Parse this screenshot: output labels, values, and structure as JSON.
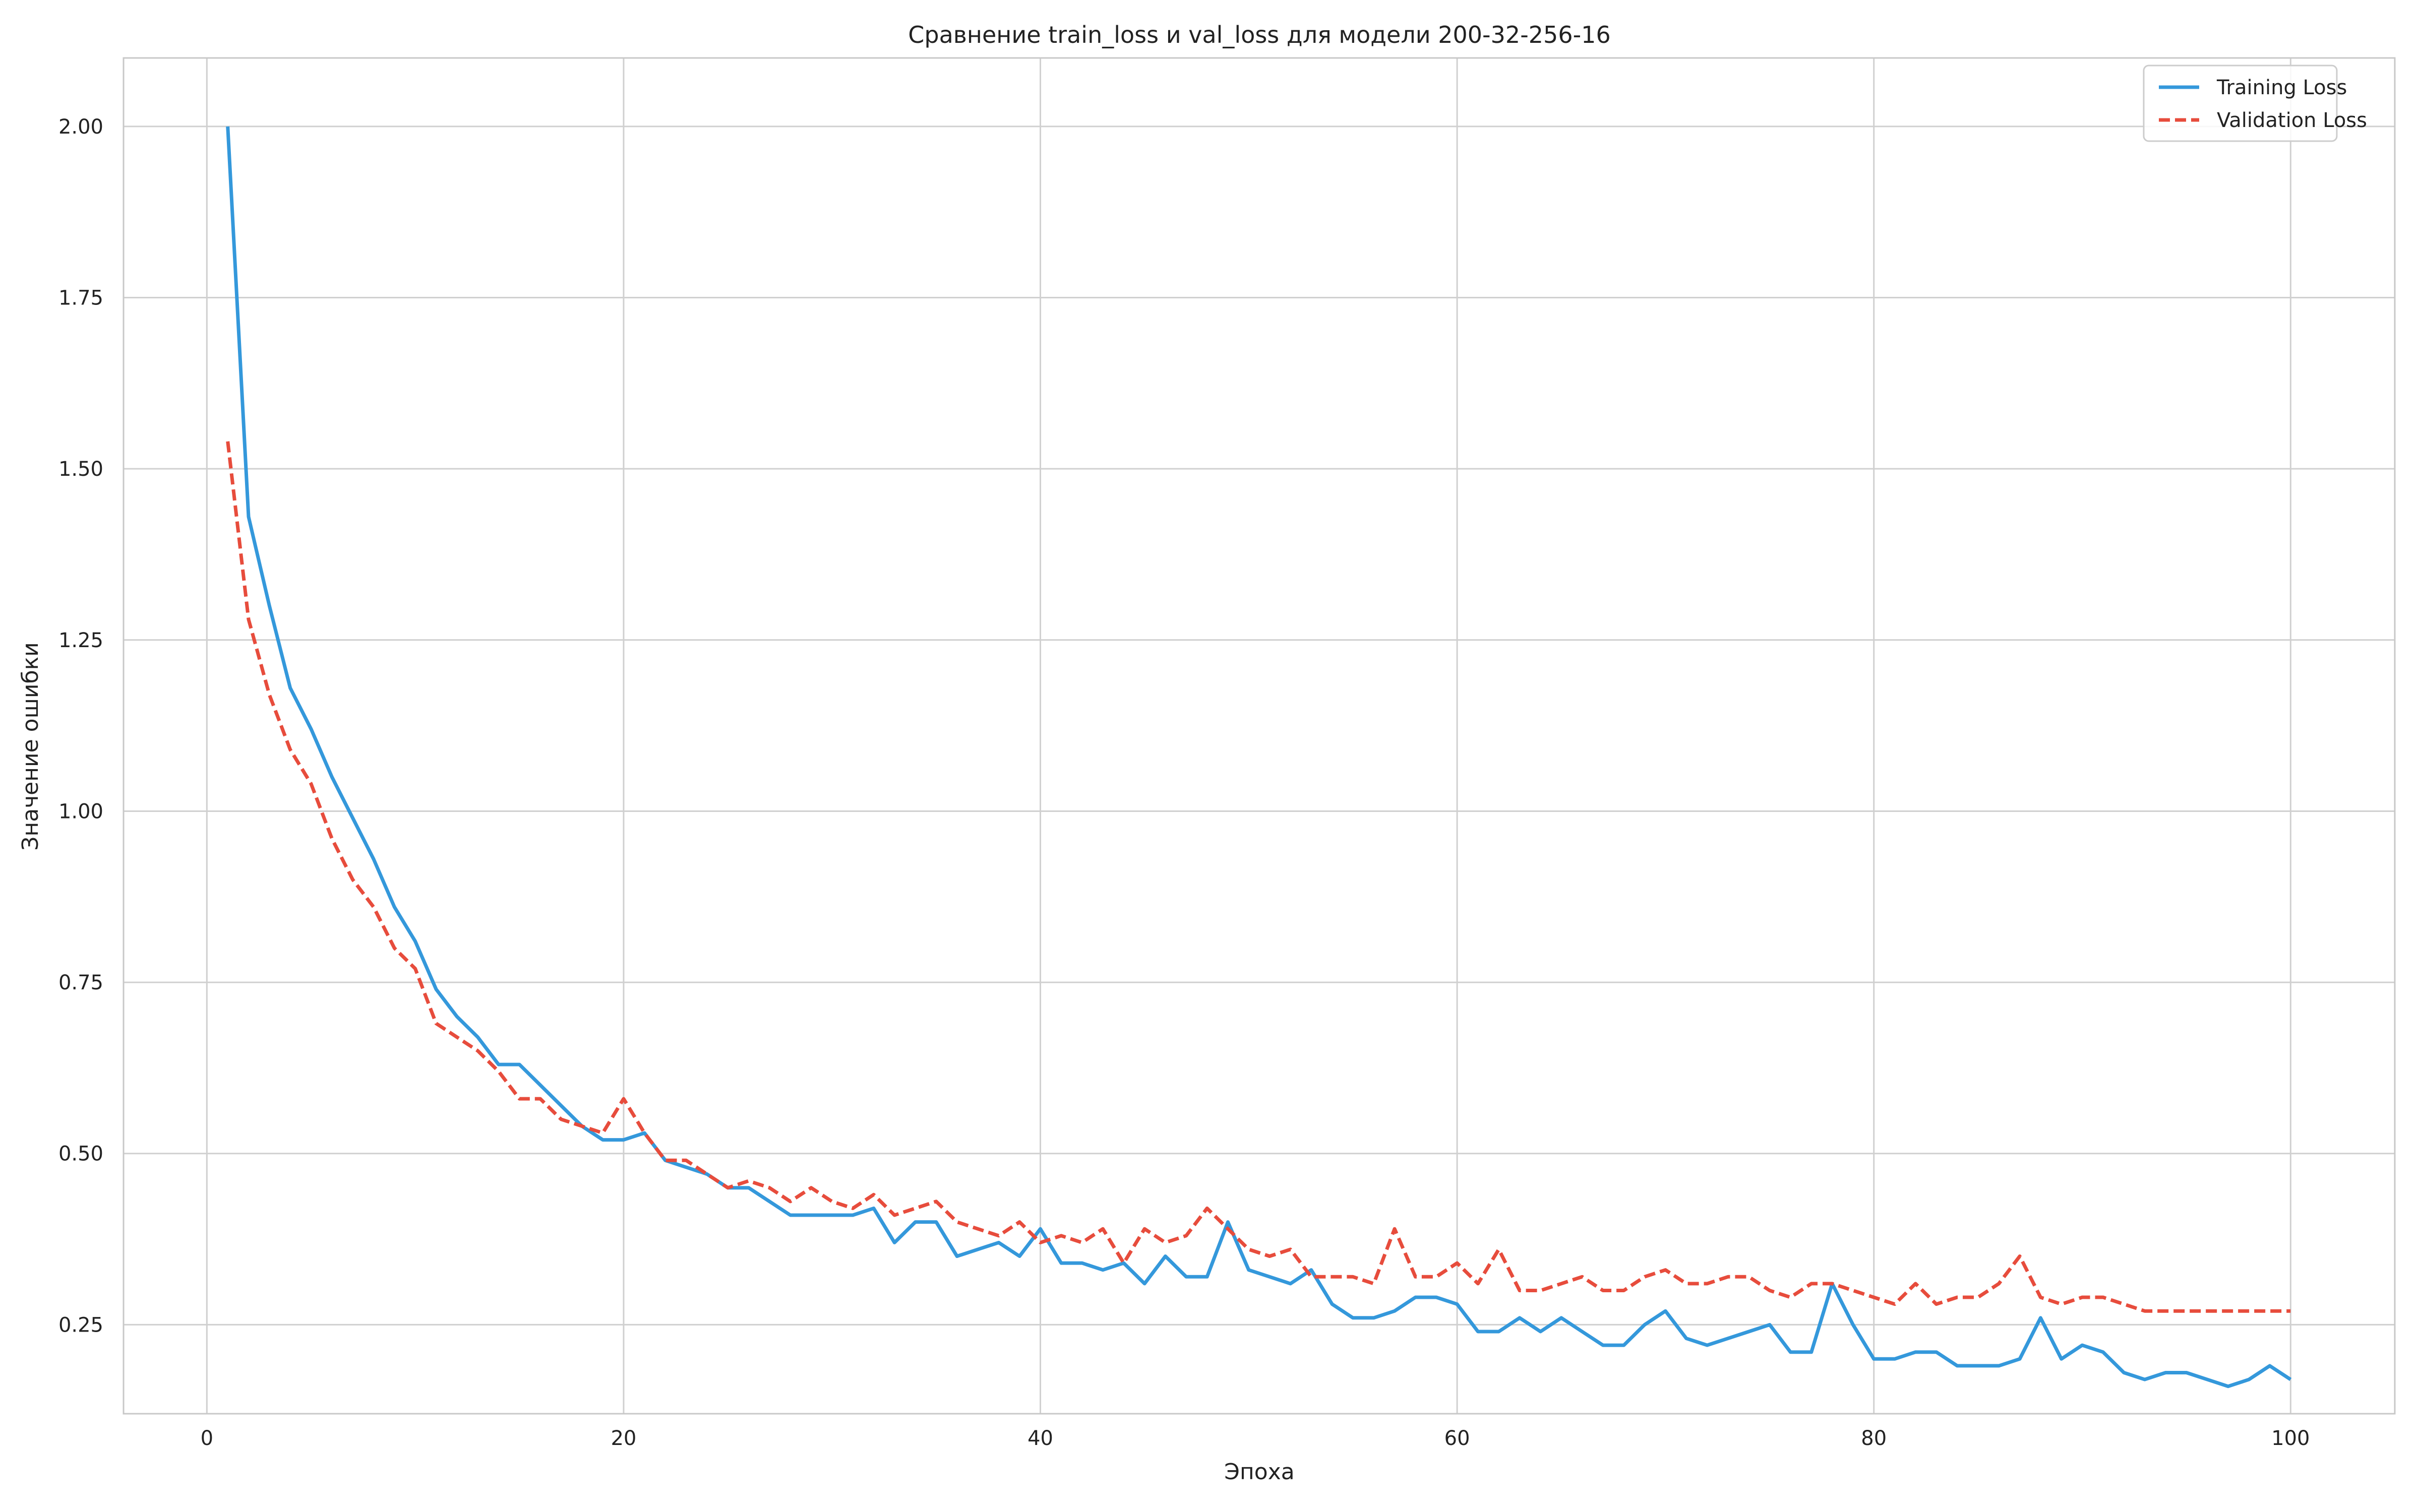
{
  "chart_data": {
    "type": "line",
    "title": "Сравнение train_loss и val_loss для модели 200-32-256-16",
    "xlabel": "Эпоха",
    "ylabel": "Значение ошибки",
    "xlim": [
      -4,
      105
    ],
    "ylim": [
      0.12,
      2.1
    ],
    "xticks": [
      0,
      20,
      40,
      60,
      80,
      100
    ],
    "xtick_labels": [
      "0",
      "20",
      "40",
      "60",
      "80",
      "100"
    ],
    "yticks": [
      0.25,
      0.5,
      0.75,
      1.0,
      1.25,
      1.5,
      1.75,
      2.0
    ],
    "ytick_labels": [
      "0.25",
      "0.50",
      "0.75",
      "1.00",
      "1.25",
      "1.50",
      "1.75",
      "2.00"
    ],
    "grid": true,
    "legend_position": "top-right",
    "x": [
      1,
      2,
      3,
      4,
      5,
      6,
      7,
      8,
      9,
      10,
      11,
      12,
      13,
      14,
      15,
      16,
      17,
      18,
      19,
      20,
      21,
      22,
      23,
      24,
      25,
      26,
      27,
      28,
      29,
      30,
      31,
      32,
      33,
      34,
      35,
      36,
      37,
      38,
      39,
      40,
      41,
      42,
      43,
      44,
      45,
      46,
      47,
      48,
      49,
      50,
      51,
      52,
      53,
      54,
      55,
      56,
      57,
      58,
      59,
      60,
      61,
      62,
      63,
      64,
      65,
      66,
      67,
      68,
      69,
      70,
      71,
      72,
      73,
      74,
      75,
      76,
      77,
      78,
      79,
      80,
      81,
      82,
      83,
      84,
      85,
      86,
      87,
      88,
      89,
      90,
      91,
      92,
      93,
      94,
      95,
      96,
      97,
      98,
      99,
      100
    ],
    "series": [
      {
        "name": "Training Loss",
        "color": "#3498db",
        "style": "solid",
        "values": [
          2.0,
          1.43,
          1.3,
          1.18,
          1.12,
          1.05,
          0.99,
          0.93,
          0.86,
          0.81,
          0.74,
          0.7,
          0.67,
          0.63,
          0.63,
          0.6,
          0.57,
          0.54,
          0.52,
          0.52,
          0.53,
          0.49,
          0.48,
          0.47,
          0.45,
          0.45,
          0.43,
          0.41,
          0.41,
          0.41,
          0.41,
          0.42,
          0.37,
          0.4,
          0.4,
          0.35,
          0.36,
          0.37,
          0.35,
          0.39,
          0.34,
          0.34,
          0.33,
          0.34,
          0.31,
          0.35,
          0.32,
          0.32,
          0.4,
          0.33,
          0.32,
          0.31,
          0.33,
          0.28,
          0.26,
          0.26,
          0.27,
          0.29,
          0.29,
          0.28,
          0.24,
          0.24,
          0.26,
          0.24,
          0.26,
          0.24,
          0.22,
          0.22,
          0.25,
          0.27,
          0.23,
          0.22,
          0.23,
          0.24,
          0.25,
          0.21,
          0.21,
          0.31,
          0.25,
          0.2,
          0.2,
          0.21,
          0.21,
          0.19,
          0.19,
          0.19,
          0.2,
          0.26,
          0.2,
          0.22,
          0.21,
          0.18,
          0.17,
          0.18,
          0.18,
          0.17,
          0.16,
          0.17,
          0.19,
          0.17
        ]
      },
      {
        "name": "Validation Loss",
        "color": "#e74c3c",
        "style": "dashed",
        "values": [
          1.54,
          1.28,
          1.17,
          1.09,
          1.04,
          0.96,
          0.9,
          0.86,
          0.8,
          0.77,
          0.69,
          0.67,
          0.65,
          0.62,
          0.58,
          0.58,
          0.55,
          0.54,
          0.53,
          0.58,
          0.53,
          0.49,
          0.49,
          0.47,
          0.45,
          0.46,
          0.45,
          0.43,
          0.45,
          0.43,
          0.42,
          0.44,
          0.41,
          0.42,
          0.43,
          0.4,
          0.39,
          0.38,
          0.4,
          0.37,
          0.38,
          0.37,
          0.39,
          0.34,
          0.39,
          0.37,
          0.38,
          0.42,
          0.39,
          0.36,
          0.35,
          0.36,
          0.32,
          0.32,
          0.32,
          0.31,
          0.39,
          0.32,
          0.32,
          0.34,
          0.31,
          0.36,
          0.3,
          0.3,
          0.31,
          0.32,
          0.3,
          0.3,
          0.32,
          0.33,
          0.31,
          0.31,
          0.32,
          0.32,
          0.3,
          0.29,
          0.31,
          0.31,
          0.3,
          0.29,
          0.28,
          0.31,
          0.28,
          0.29,
          0.29,
          0.31,
          0.35,
          0.29,
          0.28,
          0.29,
          0.29,
          0.28,
          0.27,
          0.27,
          0.27,
          0.27,
          0.27,
          0.27,
          0.27,
          0.27
        ]
      }
    ]
  }
}
